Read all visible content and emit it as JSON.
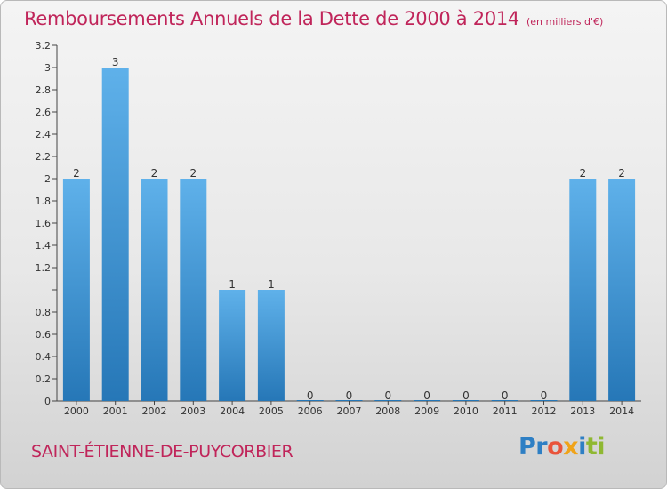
{
  "title": "Remboursements Annuels de la Dette de 2000 à 2014",
  "unit": "(en milliers d'€)",
  "commune": "SAINT-ÉTIENNE-DE-PUYCORBIER",
  "logo": {
    "parts": [
      "Pr",
      "o",
      "x",
      "i",
      "ti"
    ],
    "colors": [
      "#2e7fc4",
      "#e9543b",
      "#f0a319",
      "#2e7fc4",
      "#8fb832"
    ]
  },
  "colors": {
    "title": "#c0255a",
    "bar_light": "#5fb1ea",
    "bar_dark": "#2677b7",
    "background_top": "#f4f4f4",
    "background_bottom": "#d2d2d2"
  },
  "chart_data": {
    "type": "bar",
    "title": "Remboursements Annuels de la Dette de 2000 à 2014",
    "categories": [
      "2000",
      "2001",
      "2002",
      "2003",
      "2004",
      "2005",
      "2006",
      "2007",
      "2008",
      "2009",
      "2010",
      "2011",
      "2012",
      "2013",
      "2014"
    ],
    "values": [
      2,
      3,
      2,
      2,
      1,
      1,
      0,
      0,
      0,
      0,
      0,
      0,
      0,
      2,
      2
    ],
    "data_labels": [
      "2",
      "3",
      "2",
      "2",
      "1",
      "1",
      "0",
      "0",
      "0",
      "0",
      "0",
      "0",
      "0",
      "2",
      "2"
    ],
    "actual_heights": [
      2,
      3,
      2,
      2,
      1,
      1,
      0,
      0,
      0,
      0,
      0,
      0,
      0,
      2,
      2
    ],
    "yticks": [
      0,
      0.2,
      0.4,
      0.6,
      0.8,
      1,
      1.2,
      1.4,
      1.6,
      1.8,
      2,
      2.2,
      2.4,
      2.6,
      2.8,
      3,
      3.2
    ],
    "ytick_labels": [
      "0",
      "0.2",
      "0.4",
      "0.6",
      "0.8",
      "",
      "1.2",
      "1.4",
      "1.6",
      "1.8",
      "2",
      "2.2",
      "2.4",
      "2.6",
      "2.8",
      "3",
      "3.2"
    ],
    "ylim": [
      0,
      3.2
    ],
    "xlabel": "",
    "ylabel": "",
    "grid": false,
    "legend": "none"
  }
}
